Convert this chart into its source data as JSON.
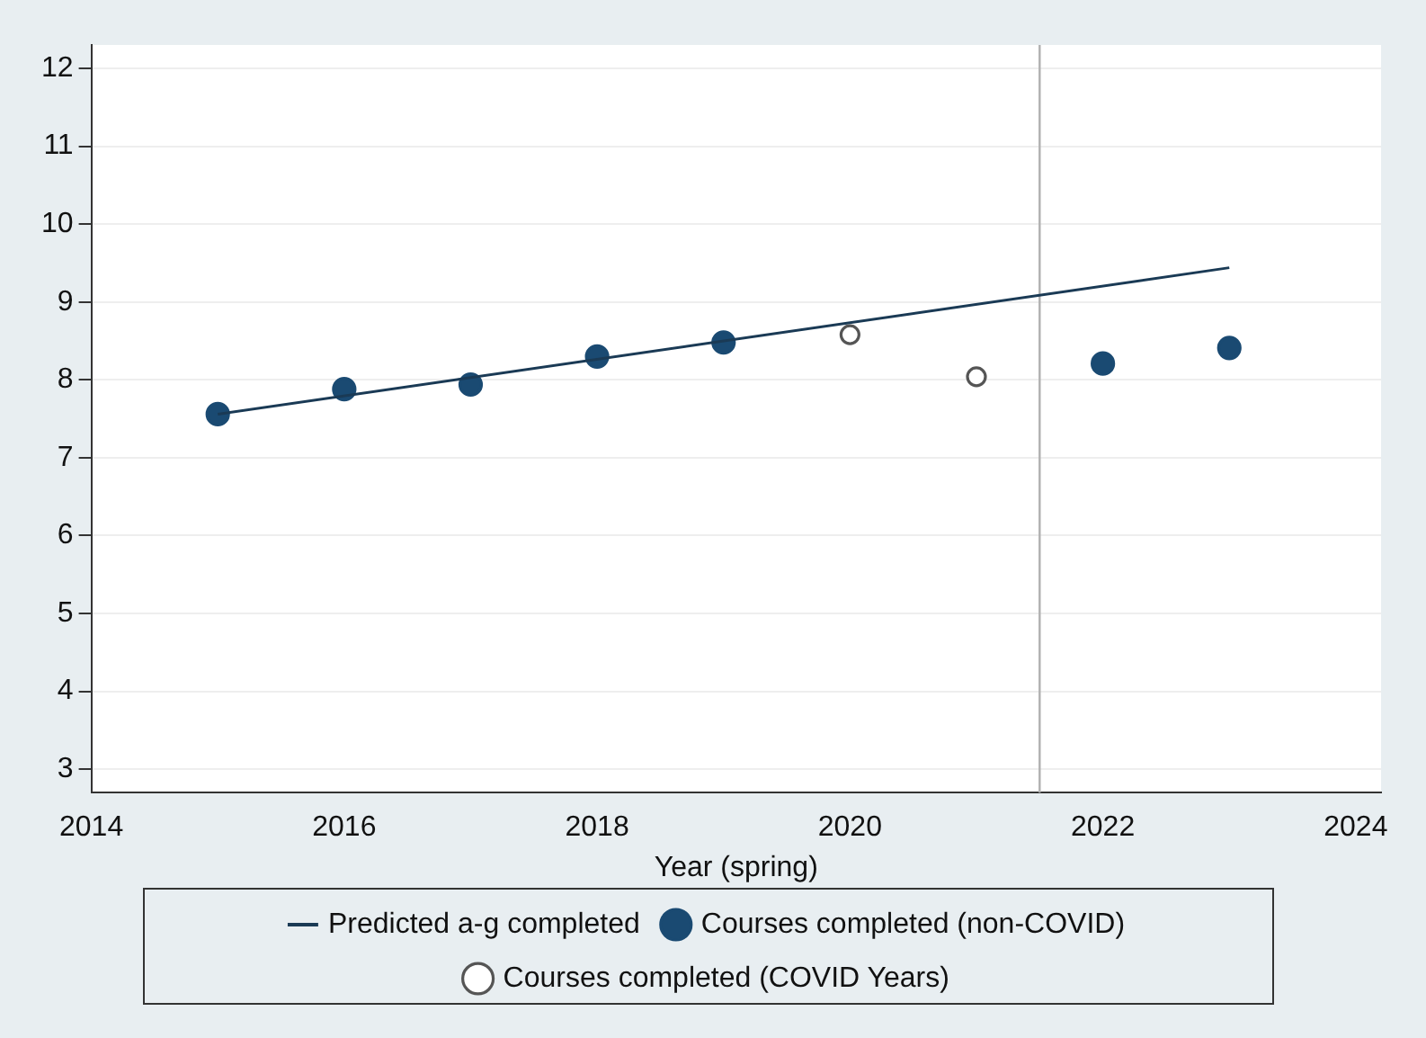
{
  "chart_data": {
    "type": "scatter",
    "xlabel": "Year (spring)",
    "xlim": [
      2014,
      2024.2
    ],
    "xticks": [
      2014,
      2016,
      2018,
      2020,
      2022,
      2024
    ],
    "ylim": [
      2.7,
      12.3
    ],
    "yticks": [
      3,
      4,
      5,
      6,
      7,
      8,
      9,
      10,
      11,
      12
    ],
    "grid": "y",
    "legend": "bottom",
    "ref_lines": [
      {
        "axis": "x",
        "value": 2021.5,
        "color": "#b0b0b0"
      }
    ],
    "series": [
      {
        "name": "Predicted a-g completed",
        "type": "line",
        "marker": "none",
        "color": "#1a3a55",
        "x": [
          2015,
          2023
        ],
        "values": [
          7.56,
          9.44
        ]
      },
      {
        "name": "Courses completed (non-COVID)",
        "marker": "circle",
        "color": "#1a4a72",
        "x": [
          2015,
          2016,
          2017,
          2018,
          2019,
          2022,
          2023
        ],
        "values": [
          7.56,
          7.88,
          7.94,
          8.3,
          8.48,
          8.21,
          8.41
        ]
      },
      {
        "name": "Courses completed (COVID Years)",
        "marker": "open-circle",
        "color": "#555555",
        "x": [
          2020,
          2021
        ],
        "values": [
          8.58,
          8.04
        ]
      }
    ]
  }
}
